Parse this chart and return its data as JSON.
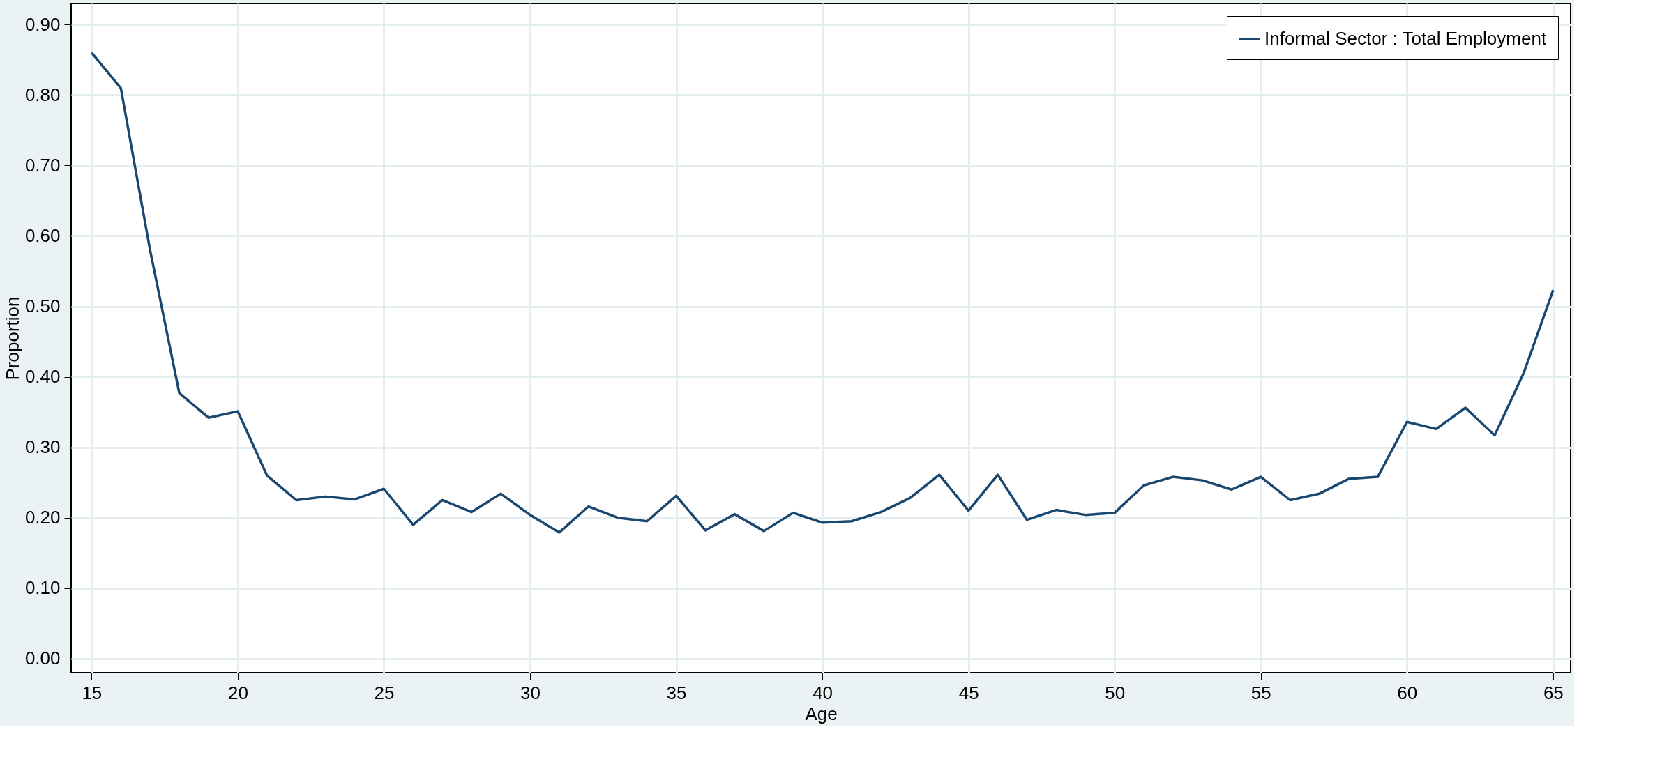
{
  "chart_data": {
    "type": "line",
    "xlabel": "Age",
    "ylabel": "Proportion",
    "x": [
      15,
      16,
      17,
      18,
      19,
      20,
      21,
      22,
      23,
      24,
      25,
      26,
      27,
      28,
      29,
      30,
      31,
      32,
      33,
      34,
      35,
      36,
      37,
      38,
      39,
      40,
      41,
      42,
      43,
      44,
      45,
      46,
      47,
      48,
      49,
      50,
      51,
      52,
      53,
      54,
      55,
      56,
      57,
      58,
      59,
      60,
      61,
      62,
      63,
      64,
      65
    ],
    "series": [
      {
        "name": "Informal Sector : Total Employment",
        "color": "#1a476f",
        "values": [
          0.86,
          0.81,
          0.58,
          0.377,
          0.342,
          0.351,
          0.26,
          0.225,
          0.23,
          0.226,
          0.241,
          0.19,
          0.225,
          0.208,
          0.234,
          0.204,
          0.179,
          0.216,
          0.2,
          0.195,
          0.231,
          0.182,
          0.205,
          0.181,
          0.207,
          0.193,
          0.195,
          0.208,
          0.228,
          0.261,
          0.21,
          0.261,
          0.197,
          0.211,
          0.204,
          0.207,
          0.246,
          0.258,
          0.253,
          0.24,
          0.258,
          0.225,
          0.234,
          0.255,
          0.258,
          0.336,
          0.326,
          0.356,
          0.317,
          0.406,
          0.523
        ]
      }
    ],
    "xlim": [
      14.3,
      65.6
    ],
    "xticks": [
      15,
      20,
      25,
      30,
      35,
      40,
      45,
      50,
      55,
      60,
      65
    ],
    "ylim": [
      -0.02,
      0.93
    ],
    "yticks": [
      {
        "value": 0,
        "label": "0.00"
      },
      {
        "value": 0.1,
        "label": "0.10"
      },
      {
        "value": 0.2,
        "label": "0.20"
      },
      {
        "value": 0.3,
        "label": "0.30"
      },
      {
        "value": 0.4,
        "label": "0.40"
      },
      {
        "value": 0.5,
        "label": "0.50"
      },
      {
        "value": 0.6,
        "label": "0.60"
      },
      {
        "value": 0.7,
        "label": "0.70"
      },
      {
        "value": 0.8,
        "label": "0.80"
      },
      {
        "value": 0.9,
        "label": "0.90"
      }
    ],
    "grid": true,
    "legend": "top right",
    "marker": "none",
    "line_style": "solid"
  }
}
